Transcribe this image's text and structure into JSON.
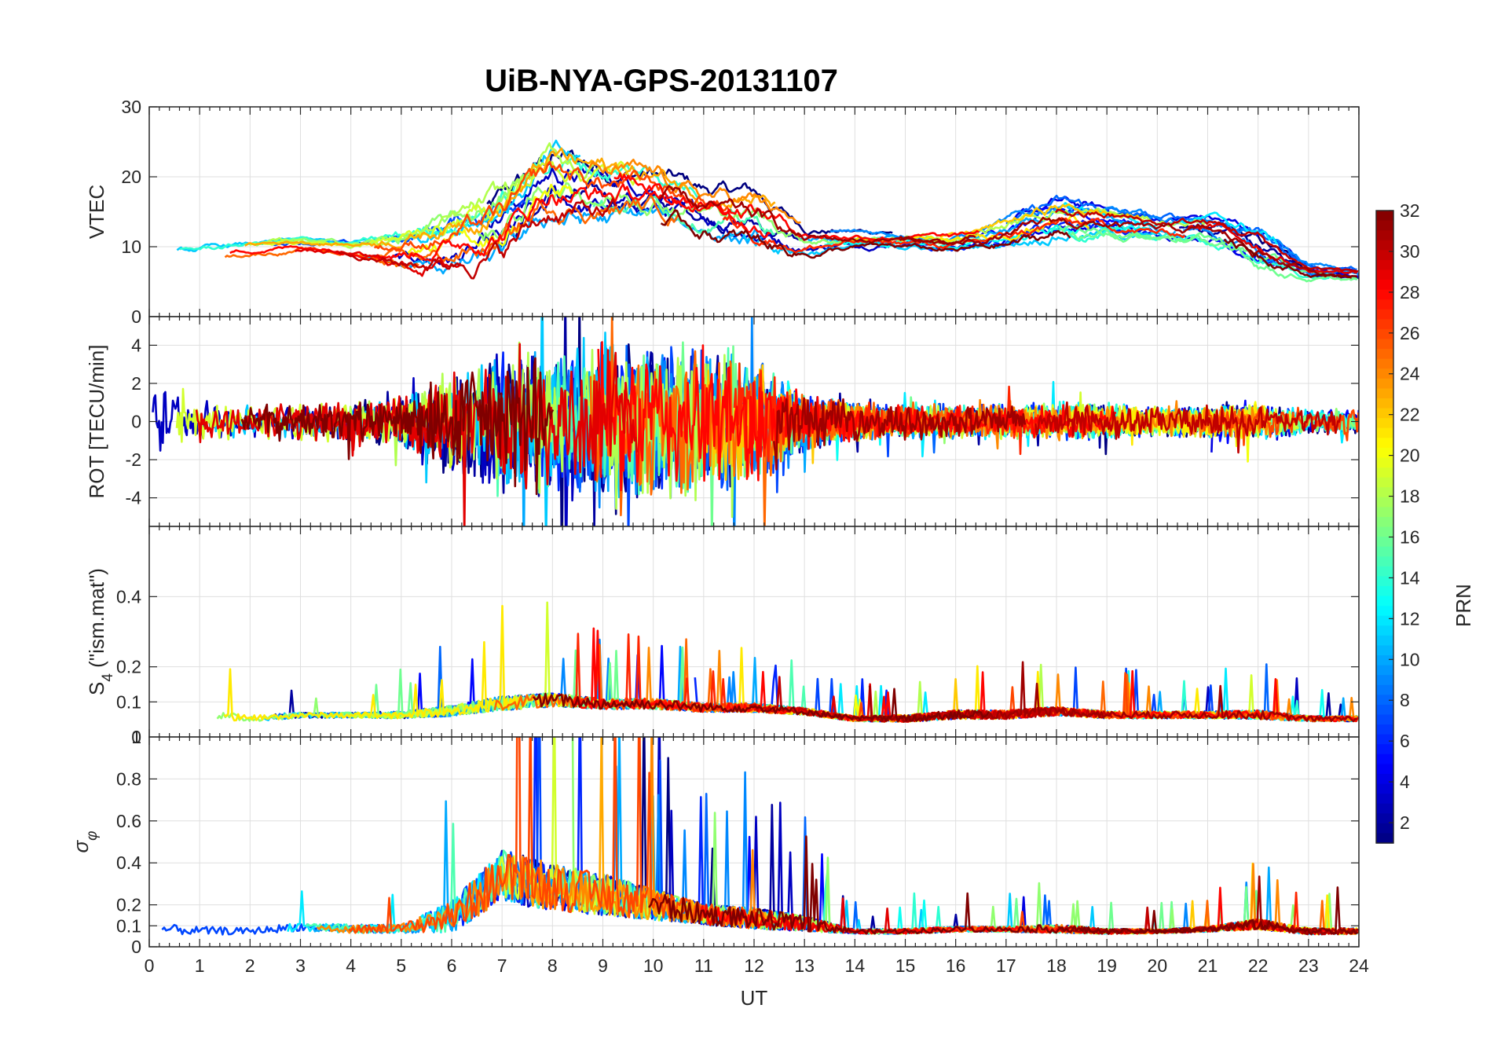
{
  "title": "UiB-NYA-GPS-20131107",
  "chart_data": [
    {
      "type": "line",
      "ylabel": "VTEC",
      "xlim": [
        0,
        24
      ],
      "ylim": [
        0,
        30
      ],
      "y_ticks": [
        0,
        10,
        20,
        30
      ],
      "y_tick_labels": [
        "",
        "10",
        "20",
        "30"
      ],
      "x_ticks": [
        0,
        1,
        2,
        3,
        4,
        5,
        6,
        7,
        8,
        9,
        10,
        11,
        12,
        13,
        14,
        15,
        16,
        17,
        18,
        19,
        20,
        21,
        22,
        23,
        24
      ],
      "grid": true,
      "baseline": [
        8,
        8.5,
        9.5,
        10,
        9.5,
        9,
        10,
        12,
        18,
        17,
        17,
        15,
        14,
        11,
        11,
        11,
        10.5,
        12,
        14,
        13.5,
        12.5,
        12.5,
        10,
        6.5,
        6
      ],
      "spread": [
        2,
        2,
        1.5,
        1.5,
        1.5,
        4,
        6,
        8,
        8,
        7,
        6,
        5,
        6,
        3,
        2,
        2,
        2,
        3,
        4,
        3,
        2.5,
        3,
        4,
        1.5,
        1.5
      ]
    },
    {
      "type": "line",
      "ylabel": "ROT [TECU/min]",
      "xlim": [
        0,
        24
      ],
      "ylim": [
        -5.5,
        5.5
      ],
      "y_ticks": [
        -4,
        -2,
        0,
        2,
        4
      ],
      "y_tick_labels": [
        "-4",
        "-2",
        "0",
        "2",
        "4"
      ],
      "top_tick_label": "0",
      "x_ticks": [
        0,
        1,
        2,
        3,
        4,
        5,
        6,
        7,
        8,
        9,
        10,
        11,
        12,
        13,
        14,
        15,
        16,
        17,
        18,
        19,
        20,
        21,
        22,
        23,
        24
      ],
      "grid": true,
      "baseline": [
        0,
        0,
        0,
        0,
        0,
        0,
        0,
        0,
        0,
        0,
        0,
        0,
        0,
        0,
        0,
        0,
        0,
        0,
        0,
        0,
        0,
        0,
        0,
        0,
        0
      ],
      "spread": [
        1.4,
        1.0,
        0.8,
        0.9,
        0.9,
        1.2,
        2.5,
        3.5,
        3.5,
        3.8,
        3.8,
        3.5,
        3.0,
        1.4,
        0.9,
        0.8,
        0.8,
        0.8,
        0.9,
        0.9,
        0.7,
        0.8,
        0.8,
        0.6,
        0.6
      ]
    },
    {
      "type": "line",
      "ylabel": "S4 (\"ism.mat\")",
      "ylabel_main": "S",
      "ylabel_sub": "4",
      "ylabel_rest": " (\"ism.mat\")",
      "xlim": [
        0,
        24
      ],
      "ylim": [
        0,
        0.6
      ],
      "y_ticks": [
        0.1,
        0.2,
        0.4
      ],
      "y_tick_labels": [
        "0.1",
        "0.2",
        "0.4"
      ],
      "bottom_tick_label": "0",
      "x_ticks": [
        0,
        1,
        2,
        3,
        4,
        5,
        6,
        7,
        8,
        9,
        10,
        11,
        12,
        13,
        14,
        15,
        16,
        17,
        18,
        19,
        20,
        21,
        22,
        23,
        24
      ],
      "grid": true,
      "baseline": [
        0.07,
        0.06,
        0.05,
        0.06,
        0.06,
        0.06,
        0.07,
        0.09,
        0.1,
        0.09,
        0.09,
        0.08,
        0.08,
        0.07,
        0.05,
        0.05,
        0.06,
        0.06,
        0.07,
        0.06,
        0.06,
        0.06,
        0.06,
        0.05,
        0.05
      ],
      "spread": [
        0.05,
        0.05,
        0.04,
        0.03,
        0.03,
        0.04,
        0.06,
        0.08,
        0.08,
        0.06,
        0.06,
        0.05,
        0.05,
        0.04,
        0.03,
        0.04,
        0.05,
        0.05,
        0.05,
        0.04,
        0.04,
        0.04,
        0.05,
        0.03,
        0.03
      ]
    },
    {
      "type": "line",
      "ylabel": "σφ",
      "ylabel_main": "σ",
      "ylabel_sub": "φ",
      "xlabel": "UT",
      "xlim": [
        0,
        24
      ],
      "ylim": [
        0,
        1
      ],
      "y_ticks": [
        0,
        0.1,
        0.2,
        0.4,
        0.6,
        0.8
      ],
      "y_tick_labels": [
        "0",
        "0.1",
        "0.2",
        "0.4",
        "0.6",
        "0.8"
      ],
      "top_tick_label": "1",
      "x_ticks": [
        0,
        1,
        2,
        3,
        4,
        5,
        6,
        7,
        8,
        9,
        10,
        11,
        12,
        13,
        14,
        15,
        16,
        17,
        18,
        19,
        20,
        21,
        22,
        23,
        24
      ],
      "x_tick_labels": [
        "0",
        "1",
        "2",
        "3",
        "4",
        "5",
        "6",
        "7",
        "8",
        "9",
        "10",
        "11",
        "12",
        "13",
        "14",
        "15",
        "16",
        "17",
        "18",
        "19",
        "20",
        "21",
        "22",
        "23",
        "24"
      ],
      "grid": true,
      "baseline": [
        0.08,
        0.07,
        0.07,
        0.09,
        0.08,
        0.08,
        0.12,
        0.3,
        0.25,
        0.22,
        0.18,
        0.14,
        0.12,
        0.1,
        0.07,
        0.07,
        0.08,
        0.08,
        0.08,
        0.07,
        0.07,
        0.08,
        0.1,
        0.07,
        0.07
      ],
      "spread": [
        0.1,
        0.08,
        0.06,
        0.08,
        0.08,
        0.08,
        0.3,
        0.5,
        0.45,
        0.4,
        0.3,
        0.2,
        0.2,
        0.15,
        0.04,
        0.05,
        0.05,
        0.05,
        0.08,
        0.05,
        0.04,
        0.05,
        0.1,
        0.06,
        0.06
      ]
    }
  ],
  "colorbar": {
    "label": "PRN",
    "range": [
      1,
      32
    ],
    "ticks": [
      2,
      4,
      6,
      8,
      10,
      12,
      14,
      16,
      18,
      20,
      22,
      24,
      26,
      28,
      30,
      32
    ],
    "tick_labels": [
      "2",
      "4",
      "6",
      "8",
      "10",
      "12",
      "14",
      "16",
      "18",
      "20",
      "22",
      "24",
      "26",
      "28",
      "30",
      "32"
    ],
    "colormap": "jet"
  },
  "colors": {
    "axis": "#262626",
    "grid": "#dfdfdf",
    "title": "#000000"
  }
}
